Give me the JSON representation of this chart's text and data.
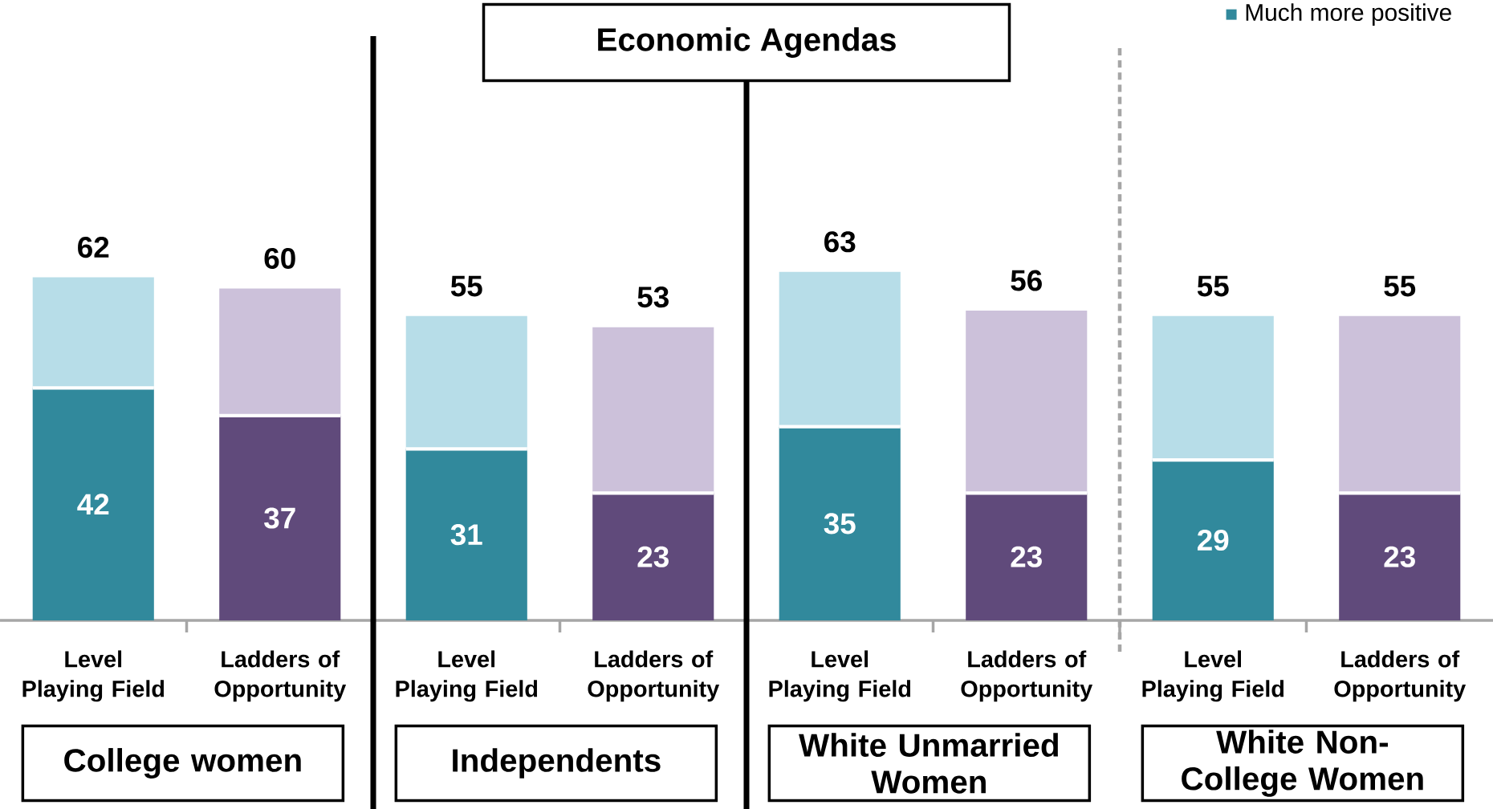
{
  "chart_data": {
    "type": "bar",
    "title": "Economic Agendas",
    "categories": [
      "Level Playing Field",
      "Ladders of Opportunity",
      "Level Playing Field",
      "Ladders of Opportunity",
      "Level Playing Field",
      "Ladders of Opportunity",
      "Level Playing Field",
      "Ladders of Opportunity"
    ],
    "stacked": true,
    "tick_labels": "x",
    "legend": "top right",
    "series": [
      {
        "name": "Much more positive",
        "colors": [
          "#31899c",
          "#604a7b",
          "#31899c",
          "#604a7b",
          "#31899c",
          "#604a7b",
          "#31899c",
          "#604a7b"
        ],
        "values": [
          42,
          37,
          31,
          23,
          35,
          23,
          29,
          23
        ],
        "value_labels": [
          "42",
          "37",
          "31",
          "23",
          "35",
          "23",
          "29",
          "23"
        ]
      },
      {
        "colors": [
          "#b7dde8",
          "#ccc1da",
          "#b7dde8",
          "#ccc1da",
          "#b7dde8",
          "#ccc1da",
          "#b7dde8",
          "#ccc1da"
        ],
        "values": [
          20,
          23,
          24,
          30,
          28,
          33,
          26,
          32
        ]
      }
    ],
    "totals": [
      "62",
      "60",
      "55",
      "53",
      "63",
      "56",
      "55",
      "55"
    ],
    "annotations": [
      "College women",
      "Independents",
      "White Unmarried Women",
      "White Non-College Women"
    ]
  }
}
